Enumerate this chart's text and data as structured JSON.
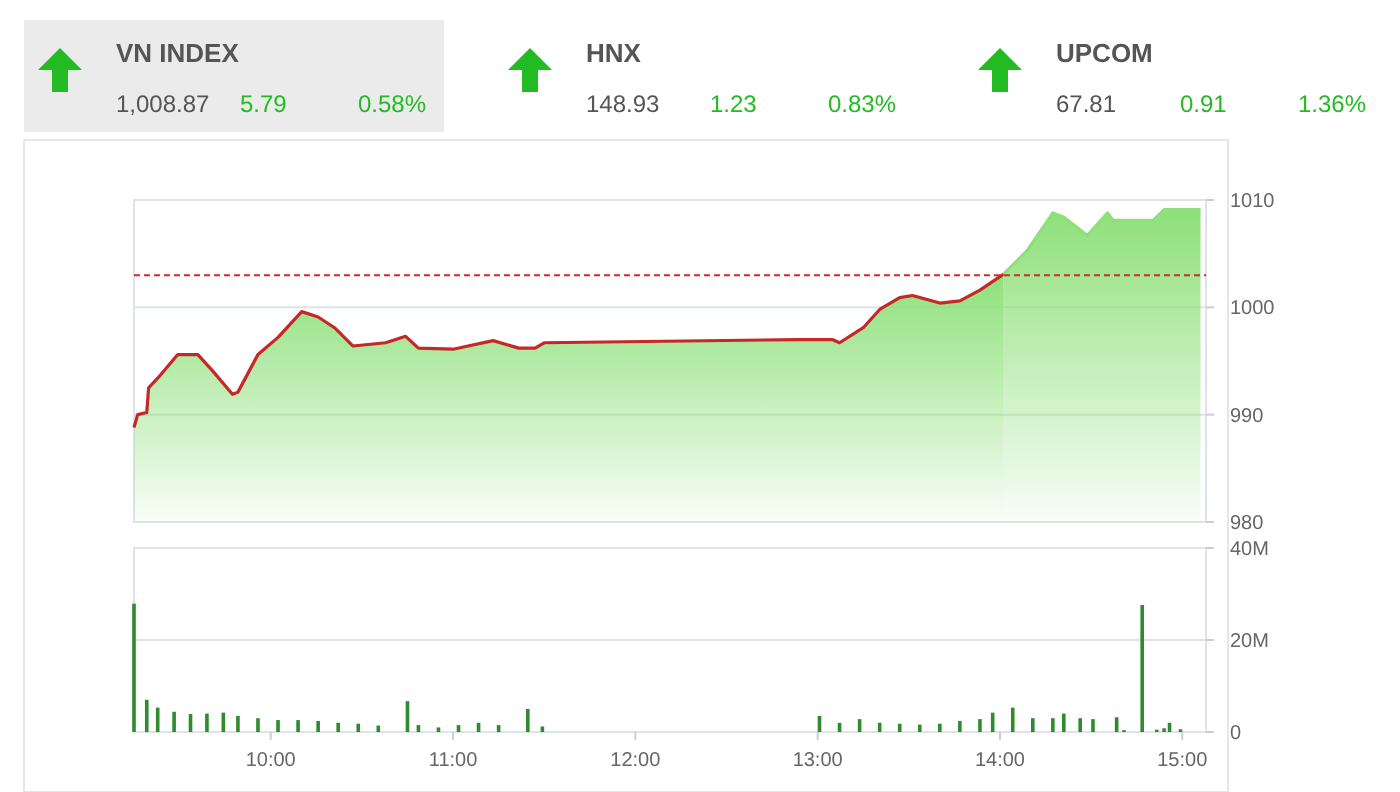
{
  "chart_data": [
    {
      "type": "other",
      "annotations": [
        "VN INDEX",
        "1,008.87",
        "5.79",
        "0.58%",
        "HNX",
        "148.93",
        "1.23",
        "0.83%",
        "UPCOM",
        "67.81",
        "0.91",
        "1.36%"
      ]
    },
    {
      "type": "area",
      "xlim": [
        9.25,
        15.13
      ],
      "ylim": [
        980,
        1010
      ],
      "yticks": [
        980,
        990,
        1000,
        1010
      ],
      "tick_labels": "y",
      "grid": "y",
      "ref_lines": [
        {
          "axis": "y",
          "value": 1003,
          "color": "#d42a2a",
          "line_style": "dashed"
        }
      ],
      "series": [
        {
          "color": "#c62828",
          "x": [
            9.25,
            9.27,
            9.32,
            9.33,
            9.38,
            9.49,
            9.6,
            9.68,
            9.79,
            9.82,
            9.93,
            10.04,
            10.17,
            10.26,
            10.35,
            10.45,
            10.63,
            10.74,
            10.81,
            11.0,
            11.22,
            11.36,
            11.45,
            11.5,
            12.9,
            13.08,
            13.12,
            13.25,
            13.34,
            13.45,
            13.52,
            13.67,
            13.78,
            13.89,
            14.02
          ],
          "values": [
            988.8,
            990.0,
            990.2,
            992.5,
            993.4,
            995.6,
            995.6,
            994.1,
            991.9,
            992.1,
            995.6,
            997.2,
            999.6,
            999.1,
            998.1,
            996.4,
            996.7,
            997.3,
            996.2,
            996.1,
            996.9,
            996.2,
            996.2,
            996.7,
            997.0,
            997.0,
            996.7,
            998.1,
            999.8,
            1000.9,
            1001.1,
            1000.4,
            1000.6,
            1001.6,
            1003.1
          ]
        },
        {
          "color": "#8ee07a",
          "x": [
            14.02,
            14.15,
            14.29,
            14.35,
            14.48,
            14.59,
            14.62,
            14.84,
            14.9,
            15.1
          ],
          "values": [
            1003.1,
            1005.3,
            1008.8,
            1008.4,
            1006.7,
            1008.8,
            1008.1,
            1008.1,
            1009.1,
            1009.1
          ]
        }
      ]
    },
    {
      "type": "bar",
      "xlim": [
        9.25,
        15.13
      ],
      "ylim": [
        0,
        40
      ],
      "yticks": [
        0,
        {
          "value": 20,
          "label": "20M"
        },
        {
          "value": 40,
          "label": "40M"
        }
      ],
      "xticks": [
        {
          "value": 10,
          "label": "10:00"
        },
        {
          "value": 11,
          "label": "11:00"
        },
        {
          "value": 12,
          "label": "12:00"
        },
        {
          "value": 13,
          "label": "13:00"
        },
        {
          "value": 14,
          "label": "14:00"
        },
        {
          "value": 15,
          "label": "15:00"
        }
      ],
      "grid": "y",
      "color": "#2e8b2e",
      "x": [
        9.25,
        9.32,
        9.38,
        9.47,
        9.56,
        9.65,
        9.74,
        9.82,
        9.93,
        10.04,
        10.15,
        10.26,
        10.37,
        10.48,
        10.59,
        10.75,
        10.81,
        10.92,
        11.03,
        11.14,
        11.25,
        11.41,
        11.49,
        13.01,
        13.12,
        13.23,
        13.34,
        13.45,
        13.56,
        13.67,
        13.78,
        13.89,
        13.96,
        14.07,
        14.18,
        14.29,
        14.35,
        14.44,
        14.51,
        14.64,
        14.68,
        14.78,
        14.86,
        14.9,
        14.93,
        14.99
      ],
      "values": [
        27.9,
        7.0,
        5.3,
        4.4,
        3.9,
        4.0,
        4.2,
        3.5,
        3.0,
        2.6,
        2.6,
        2.4,
        2.0,
        1.8,
        1.4,
        6.7,
        1.5,
        1.0,
        1.5,
        2.0,
        1.5,
        5.0,
        1.2,
        3.5,
        2.0,
        2.8,
        2.0,
        1.8,
        1.6,
        1.8,
        2.4,
        2.8,
        4.2,
        5.3,
        3.0,
        3.0,
        4.0,
        3.0,
        2.8,
        3.2,
        0.4,
        27.6,
        0.5,
        0.8,
        2.0,
        0.6
      ]
    }
  ]
}
